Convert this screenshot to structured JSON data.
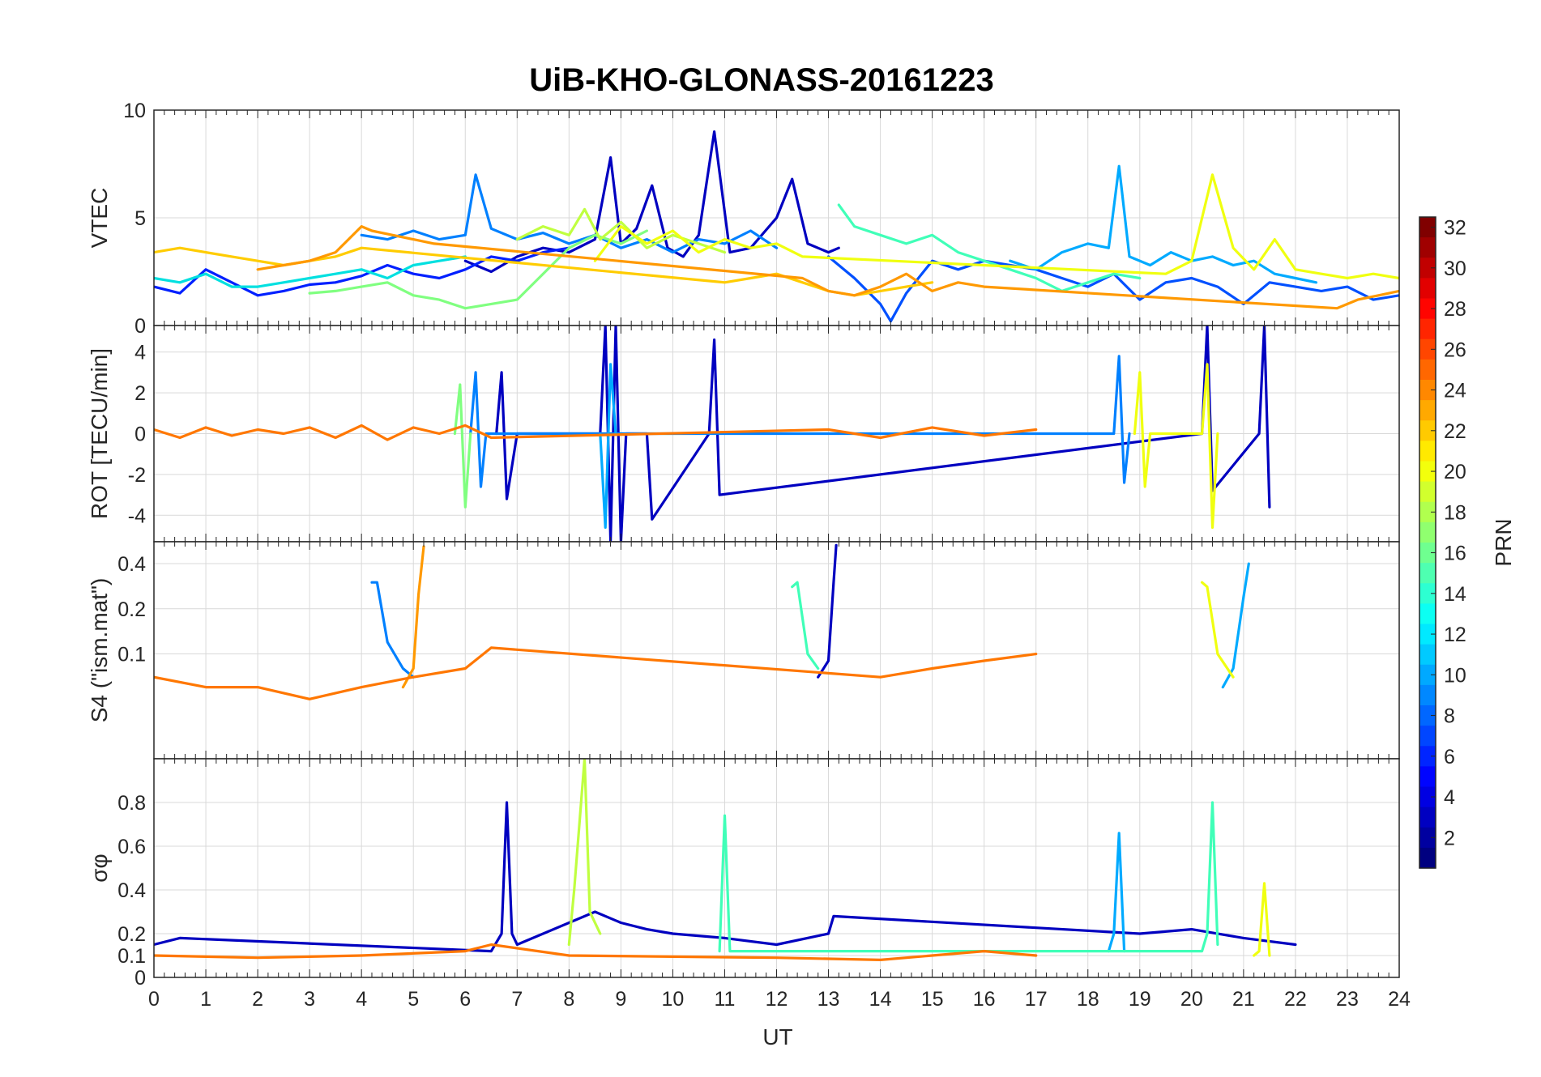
{
  "chart_data": {
    "type": "line",
    "title": "UiB-KHO-GLONASS-20161223",
    "xlabel": "UT",
    "xlim": [
      0,
      24
    ],
    "x_ticks": [
      0,
      1,
      2,
      3,
      4,
      5,
      6,
      7,
      8,
      9,
      10,
      11,
      12,
      13,
      14,
      15,
      16,
      17,
      18,
      19,
      20,
      21,
      22,
      23,
      24
    ],
    "colorbar": {
      "label": "PRN",
      "range": [
        1,
        32
      ],
      "ticks": [
        2,
        4,
        6,
        8,
        10,
        12,
        14,
        16,
        18,
        20,
        22,
        24,
        26,
        28,
        30,
        32
      ],
      "colormap": "jet"
    },
    "panels": [
      {
        "id": "vtec",
        "ylabel": "VTEC",
        "ylim": [
          0,
          10
        ],
        "y_ticks": [
          0,
          5,
          10
        ],
        "series": [
          {
            "prn": 2,
            "color": "#0000c0",
            "x": [
              6.0,
              6.5,
              7.0,
              7.5,
              8.0,
              8.5,
              8.8,
              9.0,
              9.3,
              9.6,
              9.9,
              10.2,
              10.5,
              10.8,
              11.1,
              11.5,
              12.0,
              12.3,
              12.6,
              13.0,
              13.2
            ],
            "y": [
              3.0,
              2.5,
              3.2,
              3.6,
              3.4,
              4.0,
              7.8,
              3.8,
              4.5,
              6.5,
              3.6,
              3.2,
              4.2,
              9.0,
              3.4,
              3.6,
              5.0,
              6.8,
              3.8,
              3.4,
              3.6
            ]
          },
          {
            "prn": 4,
            "color": "#0020ff",
            "x": [
              0,
              0.5,
              1,
              1.5,
              2,
              2.5,
              3,
              3.5,
              4,
              4.5,
              5,
              5.5,
              6,
              6.5,
              7,
              7.5,
              8
            ],
            "y": [
              1.8,
              1.5,
              2.6,
              2.0,
              1.4,
              1.6,
              1.9,
              2.0,
              2.3,
              2.8,
              2.4,
              2.2,
              2.6,
              3.2,
              3.0,
              3.4,
              3.6
            ]
          },
          {
            "prn": 6,
            "color": "#0050ff",
            "x": [
              13.0,
              13.5,
              14.0,
              14.2,
              14.5,
              15.0,
              15.5,
              16.0,
              16.5,
              17.0,
              17.5,
              18.0,
              18.5,
              19.0,
              19.5,
              20.0,
              20.5,
              21.0,
              21.5,
              22.0,
              22.5,
              23.0,
              23.5,
              24.0
            ],
            "y": [
              3.2,
              2.2,
              1.0,
              0.2,
              1.5,
              3.0,
              2.6,
              3.0,
              2.8,
              2.6,
              2.2,
              1.8,
              2.4,
              1.2,
              2.0,
              2.2,
              1.8,
              1.0,
              2.0,
              1.8,
              1.6,
              1.8,
              1.2,
              1.4
            ]
          },
          {
            "prn": 8,
            "color": "#0080ff",
            "x": [
              4.0,
              4.5,
              5.0,
              5.5,
              6.0,
              6.2,
              6.5,
              7.0,
              7.5,
              8.0,
              8.5,
              9.0,
              9.5,
              10.0,
              10.5,
              11.0,
              11.5,
              12.0
            ],
            "y": [
              4.2,
              4.0,
              4.4,
              4.0,
              4.2,
              7.0,
              4.5,
              4.0,
              4.3,
              3.8,
              4.2,
              3.6,
              4.0,
              3.4,
              4.0,
              3.8,
              4.4,
              3.6
            ]
          },
          {
            "prn": 10,
            "color": "#00aaff",
            "x": [
              16.5,
              17.0,
              17.5,
              18.0,
              18.4,
              18.6,
              18.8,
              19.2,
              19.6,
              20.0,
              20.4,
              20.8,
              21.2,
              21.6,
              22.0,
              22.4
            ],
            "y": [
              3.0,
              2.6,
              3.4,
              3.8,
              3.6,
              7.4,
              3.2,
              2.8,
              3.4,
              3.0,
              3.2,
              2.8,
              3.0,
              2.4,
              2.2,
              2.0
            ]
          },
          {
            "prn": 12,
            "color": "#00e0e0",
            "x": [
              0,
              0.5,
              1,
              1.5,
              2,
              2.5,
              3,
              3.5,
              4,
              4.5,
              5,
              5.5,
              6
            ],
            "y": [
              2.2,
              2.0,
              2.4,
              1.8,
              1.8,
              2.0,
              2.2,
              2.4,
              2.6,
              2.2,
              2.8,
              3.0,
              3.2
            ]
          },
          {
            "prn": 14,
            "color": "#40ffb8",
            "x": [
              13.2,
              13.5,
              14.0,
              14.5,
              15.0,
              15.5,
              16.0,
              16.5,
              17.0,
              17.5,
              18.0,
              18.5,
              19.0
            ],
            "y": [
              5.6,
              4.6,
              4.2,
              3.8,
              4.2,
              3.4,
              3.0,
              2.6,
              2.2,
              1.6,
              2.0,
              2.4,
              2.2
            ]
          },
          {
            "prn": 16,
            "color": "#80ff80",
            "x": [
              3.0,
              3.5,
              4.0,
              4.5,
              5.0,
              5.5,
              6.0,
              6.5,
              7.0,
              7.5,
              8.0,
              8.5,
              9.0,
              9.5
            ],
            "y": [
              1.5,
              1.6,
              1.8,
              2.0,
              1.4,
              1.2,
              0.8,
              1.0,
              1.2,
              2.4,
              3.6,
              4.2,
              3.8,
              4.4
            ]
          },
          {
            "prn": 18,
            "color": "#c0ff40",
            "x": [
              7.0,
              7.5,
              8.0,
              8.3,
              8.6,
              9.0,
              9.5,
              10.0,
              10.5,
              11.0
            ],
            "y": [
              4.0,
              4.6,
              4.2,
              5.4,
              4.0,
              4.8,
              3.6,
              4.2,
              3.8,
              3.4
            ]
          },
          {
            "prn": 20,
            "color": "#f0ff10",
            "x": [
              8.5,
              9.0,
              9.5,
              10.0,
              10.5,
              11.0,
              11.5,
              12.0,
              12.5,
              19.5,
              20.0,
              20.4,
              20.8,
              21.2,
              21.6,
              22.0,
              22.5,
              23.0,
              23.5,
              24.0
            ],
            "y": [
              3.0,
              4.6,
              3.8,
              4.4,
              3.4,
              4.0,
              3.6,
              3.8,
              3.2,
              2.4,
              3.0,
              7.0,
              3.6,
              2.6,
              4.0,
              2.6,
              2.4,
              2.2,
              2.4,
              2.2
            ]
          },
          {
            "prn": 22,
            "color": "#ffcc00",
            "x": [
              0,
              0.5,
              1,
              1.5,
              2,
              2.5,
              3,
              3.5,
              4,
              11.0,
              11.5,
              12.0,
              12.5,
              13.0,
              13.5,
              14.0,
              14.5,
              15.0
            ],
            "y": [
              3.4,
              3.6,
              3.4,
              3.2,
              3.0,
              2.8,
              3.0,
              3.2,
              3.6,
              2.0,
              2.2,
              2.4,
              2.0,
              1.6,
              1.4,
              1.6,
              1.8,
              2.0
            ]
          },
          {
            "prn": 23,
            "color": "#ff9900",
            "x": [
              2.0,
              2.5,
              3.0,
              3.5,
              4.0,
              4.2,
              4.6,
              5.0,
              5.4,
              12.5,
              13.0,
              13.5,
              14.0,
              14.5,
              15.0,
              15.5,
              16.0,
              22.8,
              23.2,
              23.6,
              24.0
            ],
            "y": [
              2.6,
              2.8,
              3.0,
              3.4,
              4.6,
              4.4,
              4.2,
              4.0,
              3.8,
              2.2,
              1.6,
              1.4,
              1.8,
              2.4,
              1.6,
              2.0,
              1.8,
              0.8,
              1.2,
              1.4,
              1.6
            ]
          }
        ]
      },
      {
        "id": "rot",
        "ylabel": "ROT [TECU/min]",
        "ylim": [
          -5.3,
          5.3
        ],
        "y_ticks": [
          -4,
          -2,
          0,
          2,
          4
        ],
        "series": [
          {
            "prn": 2,
            "color": "#0000c0",
            "x": [
              6.6,
              6.7,
              6.8,
              7.0,
              8.6,
              8.7,
              8.8,
              8.9,
              9.0,
              9.1,
              9.5,
              9.6,
              10.7,
              10.8,
              10.9,
              20.2,
              20.3,
              20.4,
              21.3,
              21.4,
              21.5
            ],
            "y": [
              0,
              3.0,
              -3.2,
              0,
              0,
              5.3,
              -5.3,
              5.3,
              -5.3,
              0,
              0,
              -4.2,
              0,
              4.6,
              -3.0,
              0,
              5.3,
              -2.8,
              0,
              5.3,
              -3.6
            ]
          },
          {
            "prn": 8,
            "color": "#0080ff",
            "x": [
              6.1,
              6.2,
              6.3,
              6.4,
              18.5,
              18.6,
              18.7,
              18.8
            ],
            "y": [
              0,
              3.0,
              -2.6,
              0,
              0,
              3.8,
              -2.4,
              0
            ]
          },
          {
            "prn": 10,
            "color": "#00aaff",
            "x": [
              8.6,
              8.7,
              8.8,
              8.9
            ],
            "y": [
              0,
              -4.6,
              3.4,
              0
            ]
          },
          {
            "prn": 16,
            "color": "#80ff80",
            "x": [
              5.8,
              5.9,
              6.0,
              6.1
            ],
            "y": [
              0,
              2.4,
              -3.6,
              0
            ]
          },
          {
            "prn": 20,
            "color": "#f0ff10",
            "x": [
              18.9,
              19.0,
              19.1,
              19.2,
              20.2,
              20.3,
              20.4,
              20.5
            ],
            "y": [
              0,
              3.0,
              -2.6,
              0,
              0,
              3.4,
              -4.6,
              0
            ]
          },
          {
            "prn": 24,
            "color": "#ff7700",
            "x": [
              0,
              0.5,
              1,
              1.5,
              2,
              2.5,
              3,
              3.5,
              4,
              4.5,
              5,
              5.5,
              6,
              6.5,
              13,
              14,
              15,
              16,
              17
            ],
            "y": [
              0.2,
              -0.2,
              0.3,
              -0.1,
              0.2,
              0,
              0.3,
              -0.2,
              0.4,
              -0.3,
              0.3,
              0,
              0.4,
              -0.2,
              0.2,
              -0.2,
              0.3,
              -0.1,
              0.2
            ]
          }
        ]
      },
      {
        "id": "s4",
        "ylabel": "S4 (\"ism.mat\")",
        "ylim": [
          0.02,
          0.56
        ],
        "y_ticks": [
          0.1,
          0.2,
          0.4
        ],
        "y_scale": "log",
        "series": [
          {
            "prn": 2,
            "color": "#0000c0",
            "x": [
              12.8,
              13.0,
              13.1,
              13.15
            ],
            "y": [
              0.07,
              0.09,
              0.3,
              0.53
            ]
          },
          {
            "prn": 8,
            "color": "#0080ff",
            "x": [
              4.2,
              4.3,
              4.5,
              4.8,
              5.0
            ],
            "y": [
              0.3,
              0.3,
              0.12,
              0.08,
              0.07
            ]
          },
          {
            "prn": 10,
            "color": "#00aaff",
            "x": [
              20.6,
              20.8,
              21.0,
              21.1
            ],
            "y": [
              0.06,
              0.08,
              0.24,
              0.4
            ]
          },
          {
            "prn": 14,
            "color": "#40ffb8",
            "x": [
              12.3,
              12.4,
              12.6,
              12.8
            ],
            "y": [
              0.28,
              0.3,
              0.1,
              0.08
            ]
          },
          {
            "prn": 20,
            "color": "#f0ff10",
            "x": [
              20.2,
              20.3,
              20.5,
              20.8
            ],
            "y": [
              0.3,
              0.28,
              0.1,
              0.07
            ]
          },
          {
            "prn": 23,
            "color": "#ff9900",
            "x": [
              4.8,
              5.0,
              5.1,
              5.2
            ],
            "y": [
              0.06,
              0.08,
              0.25,
              0.52
            ]
          },
          {
            "prn": 24,
            "color": "#ff7700",
            "x": [
              0,
              1,
              2,
              3,
              4,
              5,
              6,
              6.5,
              14,
              15,
              16,
              17
            ],
            "y": [
              0.07,
              0.06,
              0.06,
              0.05,
              0.06,
              0.07,
              0.08,
              0.11,
              0.07,
              0.08,
              0.09,
              0.1
            ]
          }
        ]
      },
      {
        "id": "sigma_phi",
        "ylabel": "σφ",
        "ylim": [
          0,
          1
        ],
        "y_ticks": [
          0,
          0.1,
          0.2,
          0.4,
          0.6,
          0.8
        ],
        "series": [
          {
            "prn": 2,
            "color": "#0000c0",
            "x": [
              0,
              0.5,
              6.5,
              6.7,
              6.8,
              6.9,
              7.0,
              8.5,
              9.0,
              9.5,
              10.0,
              11.0,
              12.0,
              13.0,
              13.1,
              19.0,
              20.0,
              21.0,
              22.0
            ],
            "y": [
              0.15,
              0.18,
              0.12,
              0.2,
              0.8,
              0.2,
              0.15,
              0.3,
              0.25,
              0.22,
              0.2,
              0.18,
              0.15,
              0.2,
              0.28,
              0.2,
              0.22,
              0.18,
              0.15
            ]
          },
          {
            "prn": 10,
            "color": "#00aaff",
            "x": [
              18.4,
              18.5,
              18.6,
              18.7
            ],
            "y": [
              0.12,
              0.2,
              0.66,
              0.12
            ]
          },
          {
            "prn": 14,
            "color": "#40ffb8",
            "x": [
              10.9,
              11.0,
              11.1,
              20.2,
              20.3,
              20.4,
              20.5
            ],
            "y": [
              0.12,
              0.74,
              0.12,
              0.12,
              0.2,
              0.8,
              0.15
            ]
          },
          {
            "prn": 18,
            "color": "#c0ff40",
            "x": [
              8.0,
              8.1,
              8.2,
              8.3,
              8.4,
              8.6
            ],
            "y": [
              0.15,
              0.4,
              0.7,
              1.0,
              0.3,
              0.2
            ]
          },
          {
            "prn": 20,
            "color": "#f0ff10",
            "x": [
              21.2,
              21.3,
              21.4,
              21.5
            ],
            "y": [
              0.1,
              0.12,
              0.43,
              0.1
            ]
          },
          {
            "prn": 24,
            "color": "#ff7700",
            "x": [
              0,
              2,
              4,
              6,
              6.5,
              8,
              12,
              14,
              16,
              17
            ],
            "y": [
              0.1,
              0.09,
              0.1,
              0.12,
              0.15,
              0.1,
              0.09,
              0.08,
              0.12,
              0.1
            ]
          }
        ]
      }
    ]
  }
}
